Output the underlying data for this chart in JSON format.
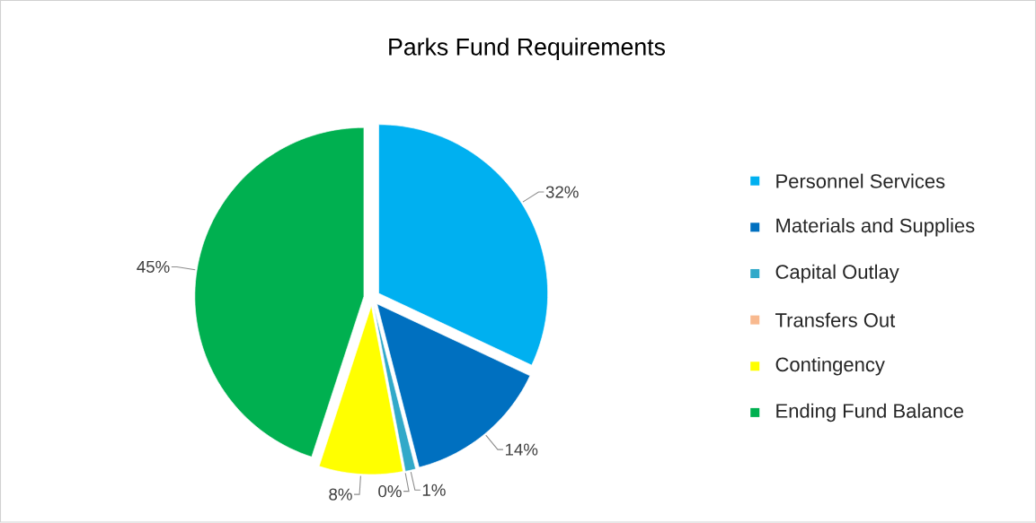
{
  "chart_data": {
    "type": "pie",
    "title": "Parks Fund Requirements",
    "categories": [
      "Personnel Services",
      "Materials and Supplies",
      "Capital Outlay",
      "Transfers Out",
      "Contingency",
      "Ending Fund Balance"
    ],
    "values": [
      32,
      14,
      1,
      0,
      8,
      45
    ],
    "value_labels": [
      "32%",
      "14%",
      "1%",
      "0%",
      "8%",
      "45%"
    ],
    "colors": [
      "#00b0f0",
      "#0070c0",
      "#31a9c9",
      "#f8b98f",
      "#ffff00",
      "#00b050"
    ],
    "legend": "right"
  }
}
